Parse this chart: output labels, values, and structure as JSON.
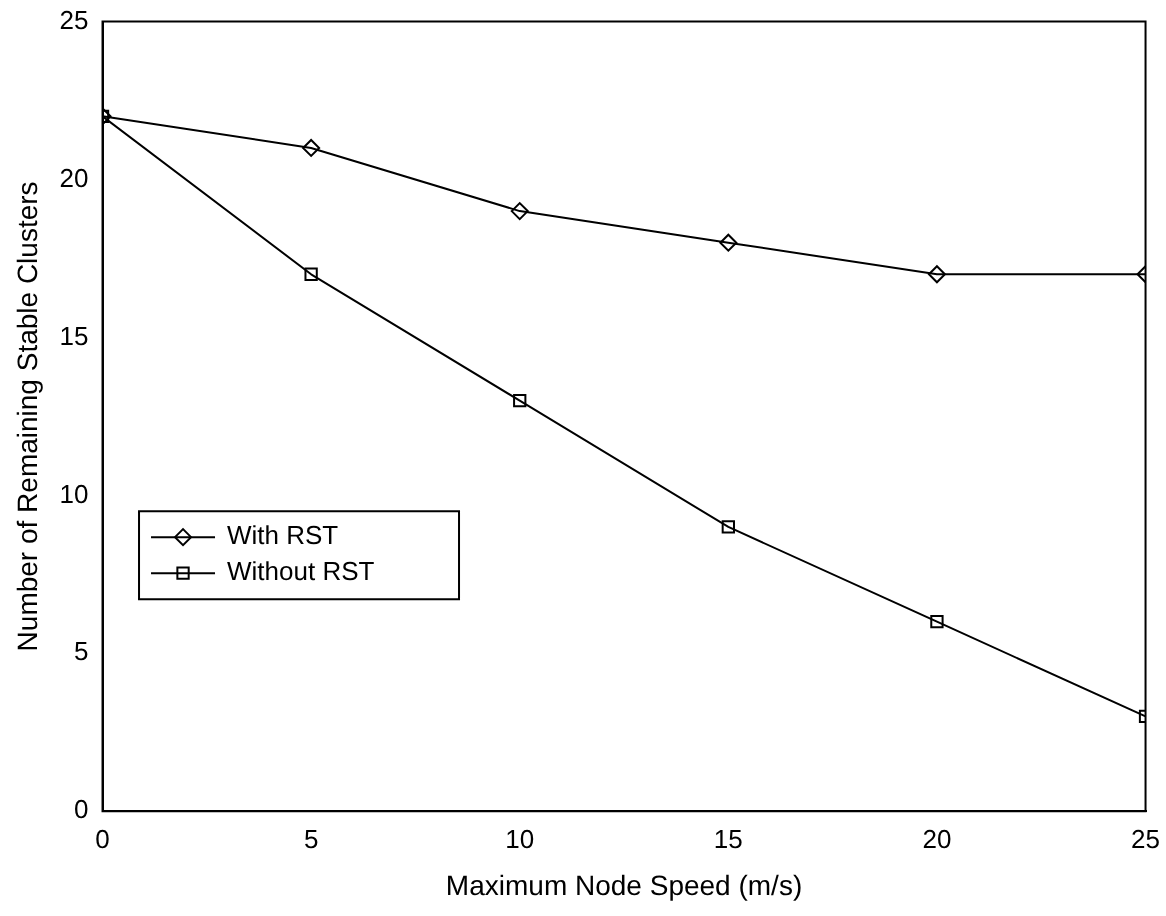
{
  "chart_data": {
    "type": "line",
    "xlabel": "Maximum Node Speed (m/s)",
    "ylabel": "Number of Remaining Stable Clusters",
    "x": [
      0,
      5,
      10,
      15,
      20,
      25
    ],
    "series": [
      {
        "name": "With RST",
        "color": "#000000",
        "marker": "diamond",
        "values": [
          22,
          21,
          19,
          18,
          17,
          17
        ]
      },
      {
        "name": "Without RST",
        "color": "#000000",
        "marker": "square",
        "values": [
          22,
          17,
          13,
          9,
          6,
          3
        ]
      }
    ],
    "xlim": [
      0,
      25
    ],
    "xticks": [
      0,
      5,
      10,
      15,
      20,
      25
    ],
    "ylim": [
      0,
      25
    ],
    "yticks": [
      0,
      5,
      10,
      15,
      20,
      25
    ],
    "grid": false,
    "legend": "left",
    "line_style": "solid"
  }
}
